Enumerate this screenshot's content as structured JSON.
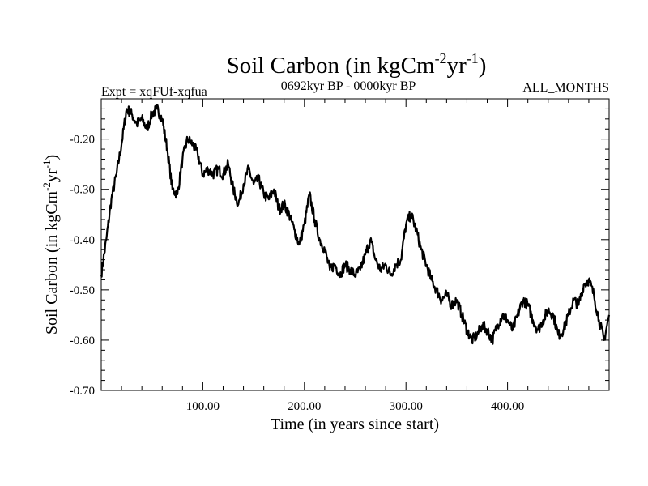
{
  "chart_data": {
    "type": "line",
    "title": "Soil Carbon (in kgCm",
    "title_sup1": "-2",
    "title_mid": "yr",
    "title_sup2": "-1",
    "title_end": ")",
    "subtitle_left": "Expt = xqFUf-xqfua",
    "subtitle_center": "0692kyr BP - 0000kyr BP",
    "subtitle_right": "ALL_MONTHS",
    "xlabel": "Time (in years since start)",
    "ylabel": "Soil Carbon (in kgCm",
    "ylabel_sup1": "-2",
    "ylabel_mid": "yr",
    "ylabel_sup2": "-1",
    "ylabel_end": ")",
    "xlim": [
      0,
      500
    ],
    "ylim": [
      -0.7,
      -0.12
    ],
    "xticks": [
      100,
      200,
      300,
      400
    ],
    "xtick_labels": [
      "100.00",
      "200.00",
      "300.00",
      "400.00"
    ],
    "yticks": [
      -0.2,
      -0.3,
      -0.4,
      -0.5,
      -0.6,
      -0.7
    ],
    "ytick_labels": [
      "-0.20",
      "-0.30",
      "-0.40",
      "-0.50",
      "-0.60",
      "-0.70"
    ],
    "line_color": "#000000",
    "series": [
      {
        "name": "Soil Carbon",
        "x": [
          0,
          5,
          10,
          15,
          20,
          25,
          30,
          35,
          40,
          45,
          50,
          55,
          60,
          65,
          70,
          75,
          80,
          85,
          90,
          95,
          100,
          105,
          110,
          115,
          120,
          125,
          130,
          135,
          140,
          145,
          150,
          155,
          160,
          165,
          170,
          175,
          180,
          185,
          190,
          195,
          200,
          205,
          210,
          215,
          220,
          225,
          230,
          235,
          240,
          245,
          250,
          255,
          260,
          265,
          270,
          275,
          280,
          285,
          290,
          295,
          300,
          305,
          310,
          315,
          320,
          325,
          330,
          335,
          340,
          345,
          350,
          355,
          360,
          365,
          370,
          375,
          380,
          385,
          390,
          395,
          400,
          405,
          410,
          415,
          420,
          425,
          430,
          435,
          440,
          445,
          450,
          455,
          460,
          465,
          470,
          475,
          480,
          485,
          490,
          495,
          500
        ],
        "values": [
          -0.47,
          -0.4,
          -0.32,
          -0.27,
          -0.21,
          -0.14,
          -0.15,
          -0.17,
          -0.16,
          -0.18,
          -0.15,
          -0.14,
          -0.16,
          -0.22,
          -0.3,
          -0.31,
          -0.24,
          -0.2,
          -0.21,
          -0.23,
          -0.27,
          -0.26,
          -0.27,
          -0.26,
          -0.27,
          -0.25,
          -0.3,
          -0.33,
          -0.29,
          -0.26,
          -0.29,
          -0.28,
          -0.31,
          -0.32,
          -0.3,
          -0.34,
          -0.33,
          -0.35,
          -0.38,
          -0.41,
          -0.37,
          -0.31,
          -0.36,
          -0.4,
          -0.42,
          -0.46,
          -0.45,
          -0.47,
          -0.45,
          -0.46,
          -0.47,
          -0.46,
          -0.43,
          -0.4,
          -0.44,
          -0.46,
          -0.45,
          -0.47,
          -0.45,
          -0.44,
          -0.37,
          -0.35,
          -0.38,
          -0.42,
          -0.45,
          -0.48,
          -0.5,
          -0.52,
          -0.51,
          -0.53,
          -0.52,
          -0.55,
          -0.58,
          -0.6,
          -0.59,
          -0.57,
          -0.58,
          -0.6,
          -0.57,
          -0.55,
          -0.56,
          -0.58,
          -0.55,
          -0.52,
          -0.53,
          -0.56,
          -0.58,
          -0.56,
          -0.54,
          -0.55,
          -0.59,
          -0.58,
          -0.55,
          -0.52,
          -0.53,
          -0.49,
          -0.48,
          -0.51,
          -0.56,
          -0.6,
          -0.55
        ]
      }
    ]
  }
}
